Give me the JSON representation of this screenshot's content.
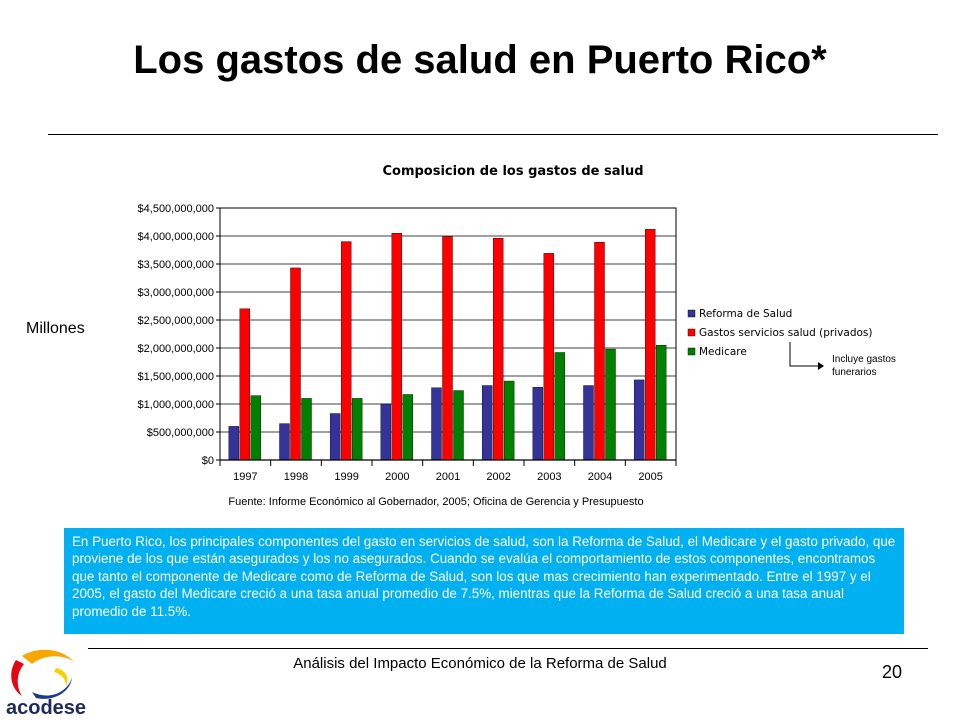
{
  "slide": {
    "title": "Los gastos de salud en Puerto Rico*",
    "unit_label": "Millones",
    "note": "Incluye gastos funerarios",
    "summary": "En Puerto Rico, los principales componentes del gasto en servicios de salud, son la Reforma de Salud, el Medicare y el gasto privado, que proviene de los que están asegurados y los no asegurados. Cuando se evalúa el comportamiento de estos componentes, encontramos que tanto el componente de Medicare como de Reforma de Salud, son los que mas crecimiento han experimentado. Entre el 1997 y el 2005, el gasto del Medicare creció a una tasa anual promedio de 7.5%, mientras que la Reforma de Salud creció a una tasa anual promedio de 11.5%.",
    "footer": "Análisis del Impacto Económico de la Reforma de Salud",
    "page_number": "20",
    "logo_text": "acodese"
  },
  "chart_data": {
    "type": "bar",
    "title": "Composicion de los gastos de salud",
    "source": "Fuente: Informe Económico al Gobernador, 2005; Oficina de Gerencia  y Presupuesto",
    "categories": [
      "1997",
      "1998",
      "1999",
      "2000",
      "2001",
      "2002",
      "2003",
      "2004",
      "2005"
    ],
    "series": [
      {
        "name": "Reforma de Salud",
        "color": "#333399",
        "values": [
          600000000,
          650000000,
          830000000,
          1000000000,
          1290000000,
          1330000000,
          1300000000,
          1330000000,
          1430000000
        ]
      },
      {
        "name": "Gastos servicios salud (privados)",
        "color": "#ff0000",
        "values": [
          2700000000,
          3430000000,
          3900000000,
          4050000000,
          3990000000,
          3960000000,
          3690000000,
          3890000000,
          4120000000
        ]
      },
      {
        "name": "Medicare",
        "color": "#008000",
        "values": [
          1150000000,
          1100000000,
          1100000000,
          1170000000,
          1240000000,
          1410000000,
          1920000000,
          1980000000,
          2050000000
        ]
      }
    ],
    "ylim": [
      0,
      4500000000
    ],
    "yticks": [
      "$0",
      "$500,000,000",
      "$1,000,000,000",
      "$1,500,000,000",
      "$2,000,000,000",
      "$2,500,000,000",
      "$3,000,000,000",
      "$3,500,000,000",
      "$4,000,000,000",
      "$4,500,000,000"
    ],
    "ytick_values": [
      0,
      500000000,
      1000000000,
      1500000000,
      2000000000,
      2500000000,
      3000000000,
      3500000000,
      4000000000,
      4500000000
    ],
    "grid": true,
    "legend": "right"
  }
}
